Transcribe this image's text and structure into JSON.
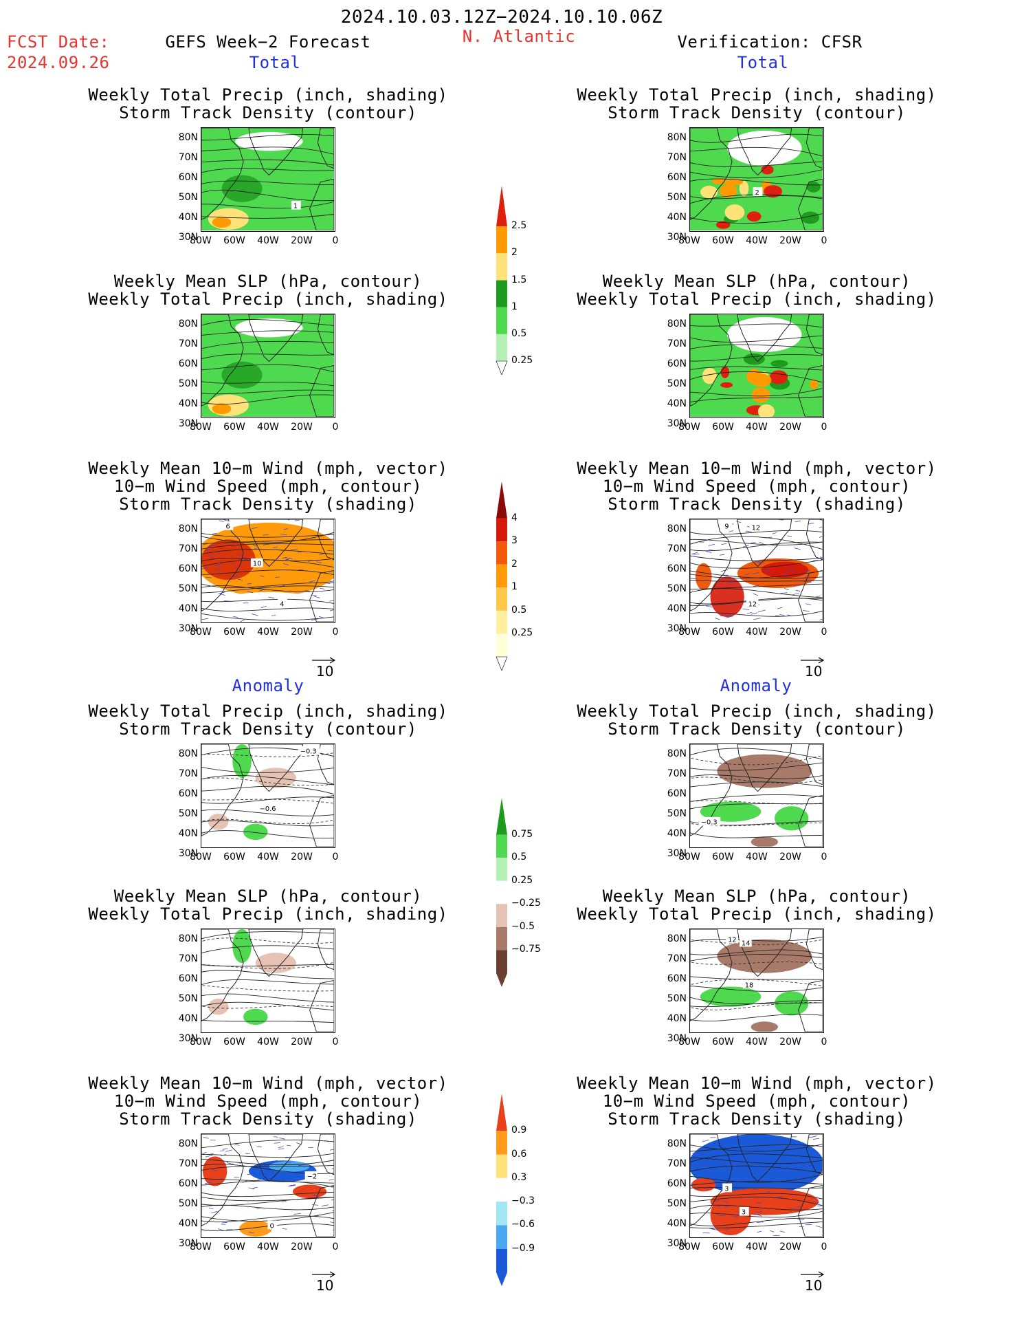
{
  "header": {
    "period": "2024.10.03.12Z−2024.10.10.06Z",
    "fcst_label": "FCST Date:",
    "fcst_date": "2024.09.26",
    "forecast_title": "GEFS Week−2 Forecast",
    "region": "N. Atlantic",
    "verification_title": "Verification: CFSR"
  },
  "sections": {
    "total_label": "Total",
    "anomaly_label": "Anomaly"
  },
  "panel_titles": {
    "precip_track": [
      "Weekly Total Precip (inch, shading)",
      "Storm Track Density (contour)"
    ],
    "slp_precip": [
      "Weekly Mean SLP (hPa, contour)",
      "Weekly Total Precip (inch, shading)"
    ],
    "wind_track": [
      "Weekly Mean 10−m Wind (mph, vector)",
      "10−m Wind Speed (mph, contour)",
      "Storm Track Density (shading)"
    ]
  },
  "axes": {
    "lat_labels": [
      "80N",
      "70N",
      "60N",
      "50N",
      "40N",
      "30N"
    ],
    "lon_labels": [
      "80W",
      "60W",
      "40W",
      "20W",
      "0"
    ]
  },
  "vector_ref": "10",
  "colorbars": {
    "precip_total": {
      "labels": [
        "2.5",
        "2",
        "1.5",
        "1",
        "0.5",
        "0.25"
      ],
      "colors": [
        "#e0200f",
        "#ff9a00",
        "#ffe27a",
        "#1e9a1e",
        "#4fd94f",
        "#b4f0b4"
      ]
    },
    "track_total": {
      "labels": [
        "4",
        "3",
        "2",
        "1",
        "0.5",
        "0.25"
      ],
      "colors": [
        "#8a0a0a",
        "#d61a0a",
        "#f05a0a",
        "#ff9a0a",
        "#ffc84a",
        "#fff0a0",
        "#ffffd8"
      ]
    },
    "precip_anom": {
      "labels": [
        "0.75",
        "0.5",
        "0.25",
        "−0.25",
        "−0.5",
        "−0.75"
      ],
      "colors": [
        "#1e9a1e",
        "#4fd94f",
        "#b4f0b4",
        "#ffffff",
        "#e6c2b4",
        "#a87a6a",
        "#6a4032"
      ]
    },
    "track_anom": {
      "labels": [
        "0.9",
        "0.6",
        "0.3",
        "−0.3",
        "−0.6",
        "−0.9"
      ],
      "colors": [
        "#e8401a",
        "#ff9a1a",
        "#ffe27a",
        "#ffffff",
        "#a0e6f4",
        "#4aa8f0",
        "#1a5ad8"
      ]
    }
  },
  "contour_labels": {
    "fc_precip_total": "1",
    "vf_precip_total": "2",
    "fc_wind_total": [
      "6",
      "10",
      "4"
    ],
    "vf_wind_total": [
      "9",
      "12",
      "12"
    ],
    "fc_precip_anom": [
      "−0.3",
      "−0.6"
    ],
    "vf_precip_anom": "−0.3",
    "vf_slp_anom": [
      "12",
      "14",
      "18"
    ],
    "fc_wind_anom": [
      "−2",
      "0"
    ],
    "vf_wind_anom": [
      "3",
      "3"
    ]
  }
}
